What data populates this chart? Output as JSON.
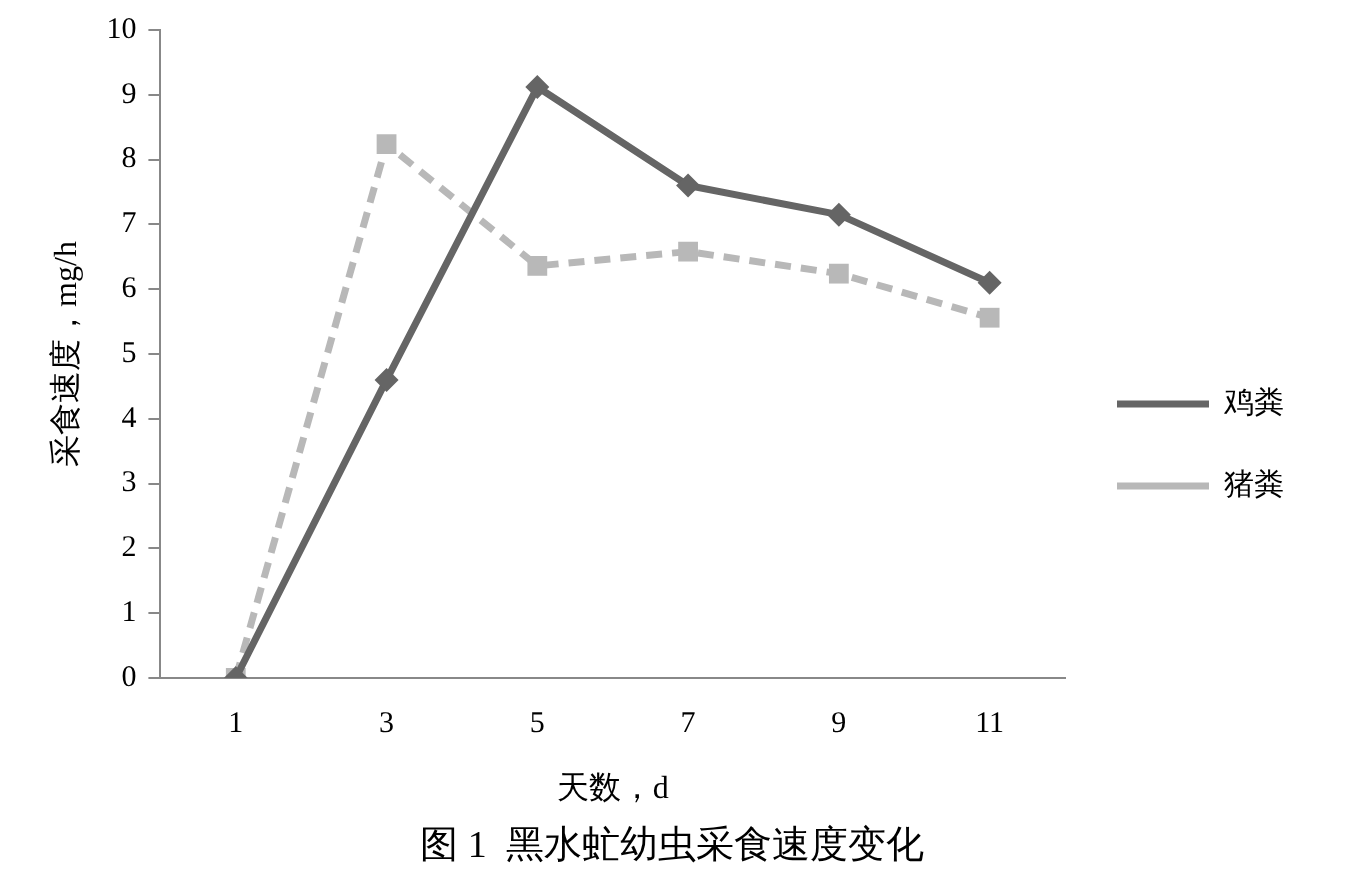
{
  "chart_data": {
    "type": "line",
    "title": "图 1  黑水虻幼虫采食速度变化",
    "xlabel": "天数，d",
    "ylabel": "采食速度，mg/h",
    "categories": [
      "1",
      "3",
      "5",
      "7",
      "9",
      "11"
    ],
    "series": [
      {
        "name": "鸡粪",
        "color": "#656565",
        "values": [
          0,
          4.6,
          9.12,
          7.6,
          7.15,
          6.1
        ],
        "marker": "diamond",
        "line_style": "solid"
      },
      {
        "name": "猪粪",
        "color": "#b8b8b8",
        "values": [
          0,
          8.24,
          6.36,
          6.58,
          6.24,
          5.56
        ],
        "marker": "square",
        "line_style": "dashed"
      }
    ],
    "ylim": [
      0,
      10
    ],
    "yticks": [
      0,
      1,
      2,
      3,
      4,
      5,
      6,
      7,
      8,
      9,
      10
    ],
    "grid": false,
    "legend": "right"
  }
}
